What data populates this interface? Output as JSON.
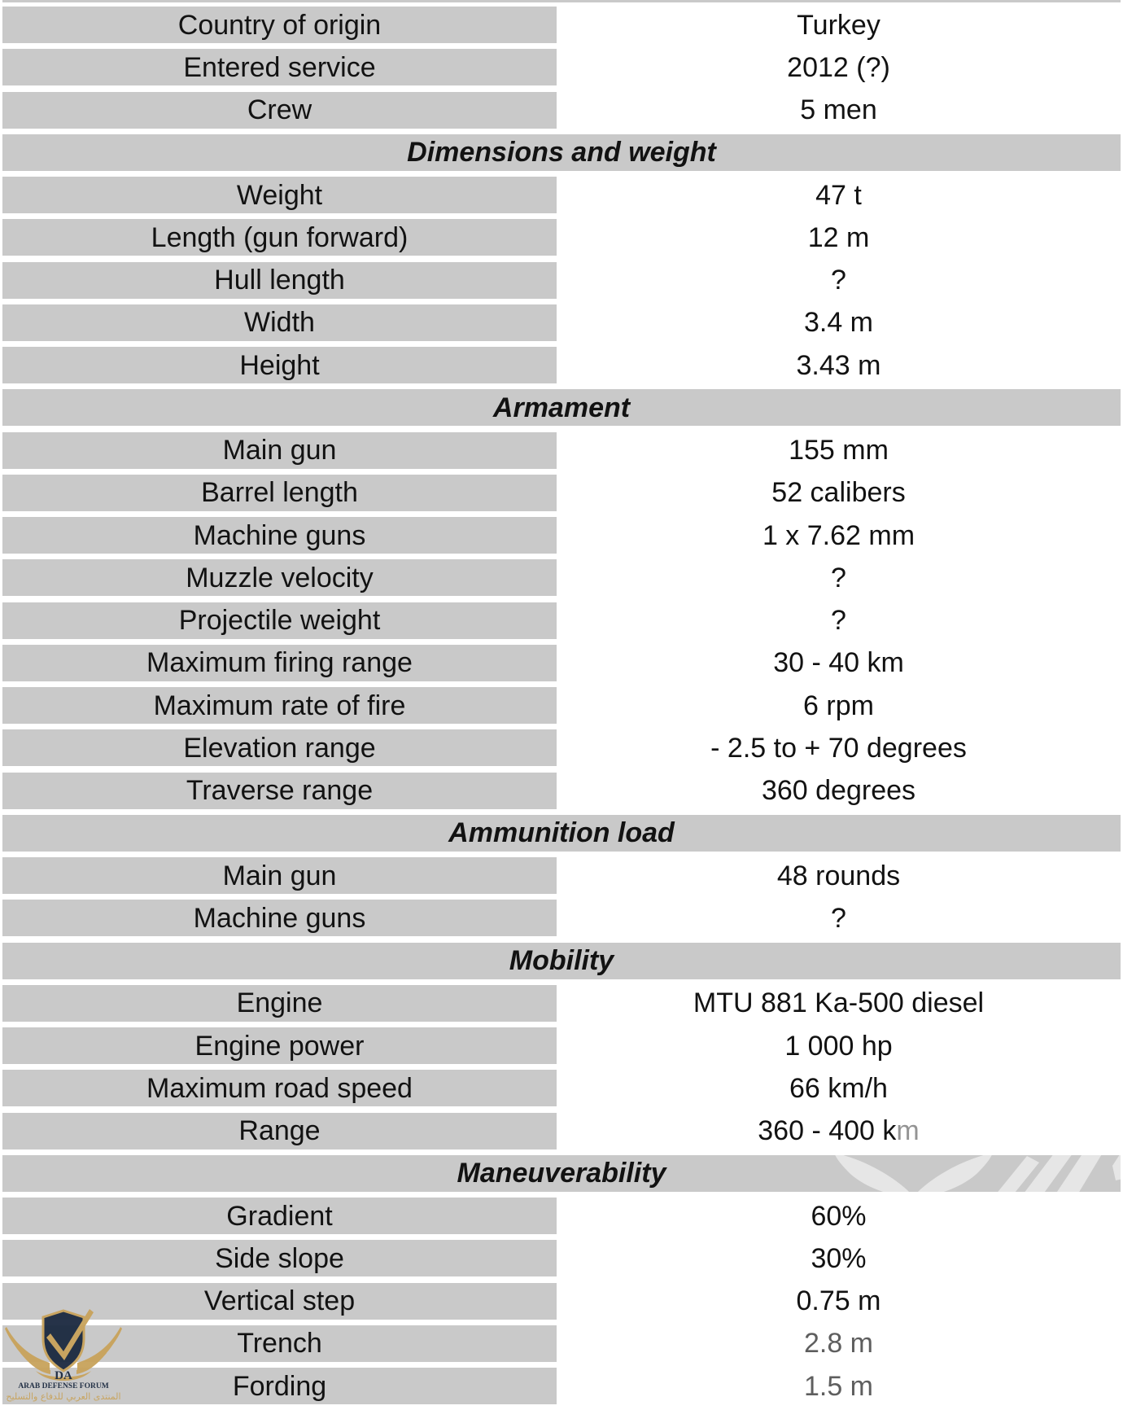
{
  "colors": {
    "row_bg": "#c9c9c9",
    "value_bg": "#ffffff",
    "text": "#121212",
    "logo_gold": "#c8a35b",
    "logo_navy": "#1b2940",
    "watermark_white": "#ffffff"
  },
  "table": {
    "sections": [
      {
        "header": null,
        "rows": [
          {
            "label": "Country of origin",
            "value": "Turkey"
          },
          {
            "label": "Entered service",
            "value": "2012 (?)"
          },
          {
            "label": "Crew",
            "value": "5 men"
          }
        ]
      },
      {
        "header": "Dimensions and weight",
        "rows": [
          {
            "label": "Weight",
            "value": "47 t"
          },
          {
            "label": "Length (gun forward)",
            "value": "12 m"
          },
          {
            "label": "Hull length",
            "value": "?"
          },
          {
            "label": "Width",
            "value": "3.4 m"
          },
          {
            "label": "Height",
            "value": "3.43 m"
          }
        ]
      },
      {
        "header": "Armament",
        "rows": [
          {
            "label": "Main gun",
            "value": "155 mm"
          },
          {
            "label": "Barrel length",
            "value": "52 calibers"
          },
          {
            "label": "Machine guns",
            "value": "1 x 7.62 mm"
          },
          {
            "label": "Muzzle velocity",
            "value": "?"
          },
          {
            "label": "Projectile weight",
            "value": "?"
          },
          {
            "label": "Maximum firing range",
            "value": "30 - 40 km"
          },
          {
            "label": "Maximum rate of fire",
            "value": "6 rpm"
          },
          {
            "label": "Elevation range",
            "value": "- 2.5 to + 70 degrees"
          },
          {
            "label": "Traverse range",
            "value": "360 degrees"
          }
        ]
      },
      {
        "header": "Ammunition load",
        "rows": [
          {
            "label": "Main gun",
            "value": "48 rounds"
          },
          {
            "label": "Machine guns",
            "value": "?"
          }
        ]
      },
      {
        "header": "Mobility",
        "rows": [
          {
            "label": "Engine",
            "value": "MTU 881 Ka-500 diesel"
          },
          {
            "label": "Engine power",
            "value": "1 000 hp"
          },
          {
            "label": "Maximum road speed",
            "value": "66 km/h"
          },
          {
            "label": "Range",
            "value": "360 - 400 km"
          }
        ]
      },
      {
        "header": "Maneuverability",
        "rows": [
          {
            "label": "Gradient",
            "value": "60%"
          },
          {
            "label": "Side slope",
            "value": "30%"
          },
          {
            "label": "Vertical step",
            "value": "0.75 m"
          },
          {
            "label": "Trench",
            "value": "2.8 m"
          },
          {
            "label": "Fording",
            "value": "1.5 m"
          }
        ]
      }
    ]
  },
  "forum_logo": {
    "monogram": "DA",
    "title": "ARAB DEFENSE FORUM",
    "subtitle_arabic": "المنتدى العربي للدفاع والتسليح"
  }
}
